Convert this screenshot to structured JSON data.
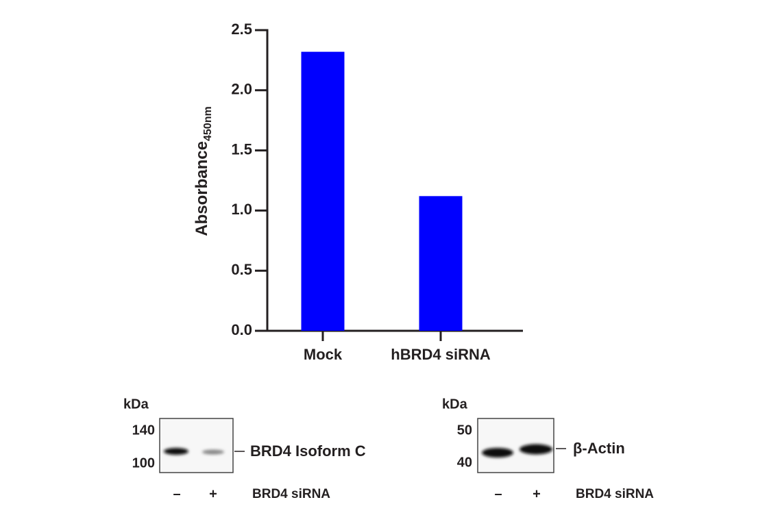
{
  "chart_data": {
    "type": "bar",
    "ylabel": "Absorbance",
    "ylabel_subscript": "450nm",
    "categories": [
      "Mock",
      "hBRD4 siRNA"
    ],
    "values": [
      2.32,
      1.12
    ],
    "color": "#0000ff",
    "ylim": [
      0,
      2.5
    ],
    "yticks": [
      {
        "value": 0,
        "label": "0.0"
      },
      0.5,
      {
        "value": 1,
        "label": "1.0"
      },
      1.5,
      {
        "value": 2,
        "label": "2.0"
      },
      2.5
    ]
  },
  "blots": [
    {
      "unit": "kDa",
      "markers": [
        "140",
        "100"
      ],
      "target": "BRD4 Isoform C",
      "lanes": [
        "–",
        "+"
      ],
      "treatment": "BRD4 siRNA"
    },
    {
      "unit": "kDa",
      "markers": [
        "50",
        "40"
      ],
      "target": "β-Actin",
      "lanes": [
        "–",
        "+"
      ],
      "treatment": "BRD4 siRNA"
    }
  ]
}
